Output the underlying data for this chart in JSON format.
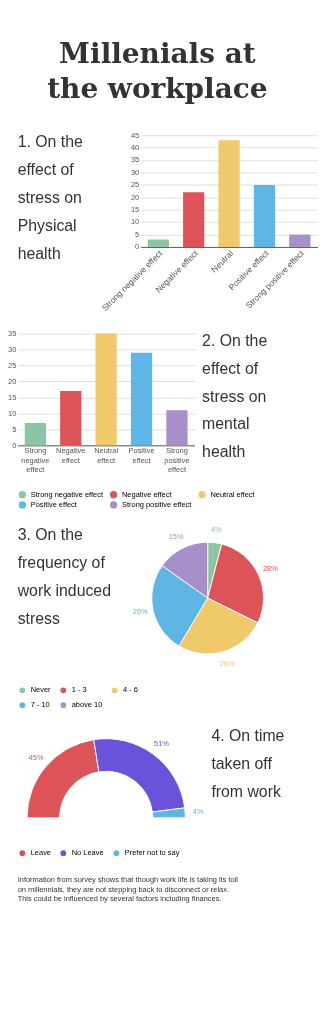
{
  "chart_data": [
    {
      "type": "other",
      "title": "Millenials at the workplace"
    },
    {
      "type": "bar",
      "title": "1. On the effect of stress on Physical health",
      "categories": [
        "Strong negative effect",
        "Negative effect",
        "Neutral",
        "Positive effect",
        "Strong positive effect"
      ],
      "values": [
        3,
        22,
        43,
        25,
        5
      ],
      "colors": [
        "#8cc5a4",
        "#dc5457",
        "#f0c96a",
        "#5db6e5",
        "#a98fc9"
      ],
      "ylim": [
        0,
        45
      ],
      "yticks": [
        0,
        5,
        10,
        15,
        20,
        25,
        30,
        35,
        40,
        45
      ],
      "grid": "y"
    },
    {
      "type": "bar",
      "title": "2. On the effect of stress on mental health",
      "categories": [
        "Strong negative effect",
        "Negative effect",
        "Neutral effect",
        "Positive effect",
        "Strong positive effect"
      ],
      "series": [
        {
          "name": "Strong negative effect",
          "color": "#8cc5a4",
          "values": [
            7,
            null,
            null,
            null,
            null
          ]
        },
        {
          "name": "Negative effect",
          "color": "#dc5457",
          "values": [
            null,
            17,
            null,
            null,
            null
          ]
        },
        {
          "name": "Neutral effect",
          "color": "#f0c96a",
          "values": [
            null,
            null,
            35,
            null,
            null
          ]
        },
        {
          "name": "Positive effect",
          "color": "#5db6e5",
          "values": [
            null,
            null,
            null,
            29,
            null
          ]
        },
        {
          "name": "Strong positive effect",
          "color": "#a98fc9",
          "values": [
            null,
            null,
            null,
            null,
            11
          ]
        }
      ],
      "ylim": [
        0,
        35
      ],
      "yticks": [
        0,
        5,
        10,
        15,
        20,
        25,
        30,
        35
      ],
      "grid": "y",
      "legend": "bottom"
    },
    {
      "type": "pie",
      "title": "3. On the frequency of work induced stress",
      "categories": [
        "Never",
        "1 - 3",
        "4 - 6",
        "7 - 10",
        "above 10"
      ],
      "values": [
        4,
        28,
        26,
        26,
        15
      ],
      "colors": [
        "#8cc5a4",
        "#dc5457",
        "#f0c96a",
        "#5db6e5",
        "#a98fc9"
      ],
      "value_labels": [
        "4%",
        "28%",
        "26%",
        "26%",
        "15%"
      ],
      "legend": "bottom"
    },
    {
      "type": "donut",
      "title": "4. On time taken off from work",
      "categories": [
        "Leave",
        "No Leave",
        "Prefer not to say"
      ],
      "values": [
        45,
        51,
        4
      ],
      "colors": [
        "#dc5457",
        "#6b52db",
        "#5db6e5"
      ],
      "value_labels": [
        "45%",
        "51%",
        "4%"
      ],
      "legend": "bottom",
      "annotations": [
        "Information from survey shows that though work life is taking its toll on millennials, they are not stepping back to disconnect or relax. This could be influenced by several factors including finances."
      ]
    }
  ]
}
